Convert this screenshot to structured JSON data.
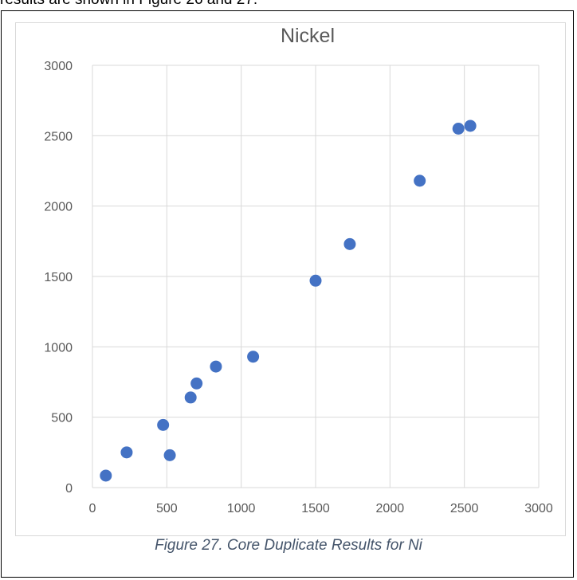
{
  "page": {
    "heading": "results are shown in Figure 26 and 27.",
    "caption": "Figure 27. Core Duplicate Results for Ni"
  },
  "chart_data": {
    "type": "scatter",
    "title": "Nickel",
    "xlabel": "",
    "ylabel": "",
    "xlim": [
      0,
      3000
    ],
    "ylim": [
      0,
      3000
    ],
    "x_ticks": [
      0,
      500,
      1000,
      1500,
      2000,
      2500,
      3000
    ],
    "y_ticks": [
      0,
      500,
      1000,
      1500,
      2000,
      2500,
      3000
    ],
    "grid": true,
    "legend": "none",
    "marker_color": "#4472c4",
    "points": [
      {
        "x": 90,
        "y": 85
      },
      {
        "x": 230,
        "y": 250
      },
      {
        "x": 475,
        "y": 445
      },
      {
        "x": 520,
        "y": 230
      },
      {
        "x": 660,
        "y": 640
      },
      {
        "x": 700,
        "y": 740
      },
      {
        "x": 830,
        "y": 860
      },
      {
        "x": 1080,
        "y": 930
      },
      {
        "x": 1500,
        "y": 1470
      },
      {
        "x": 1730,
        "y": 1730
      },
      {
        "x": 2200,
        "y": 2180
      },
      {
        "x": 2460,
        "y": 2550
      },
      {
        "x": 2540,
        "y": 2570
      }
    ]
  }
}
